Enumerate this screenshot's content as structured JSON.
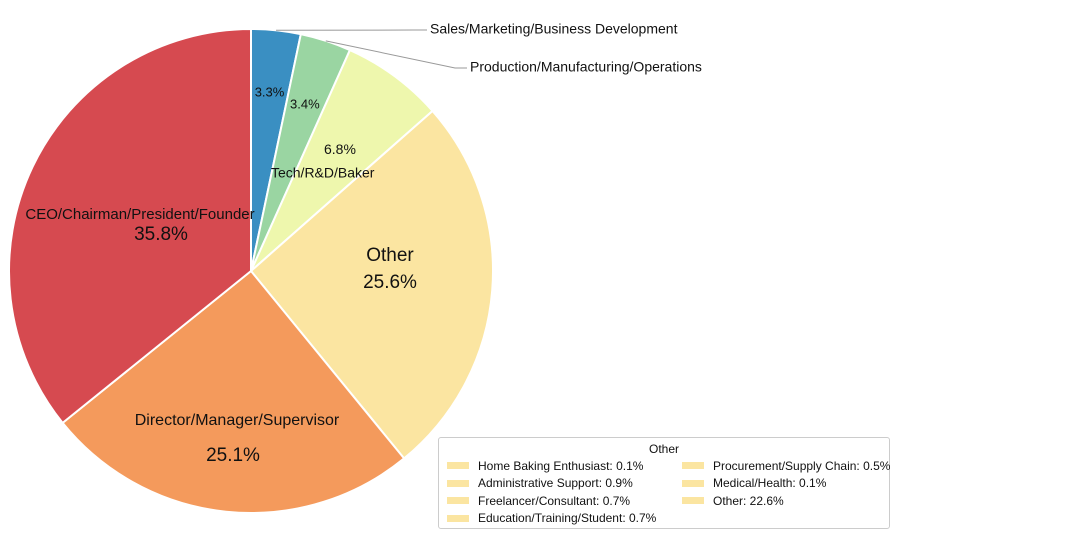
{
  "chart_data": {
    "type": "pie",
    "slices": [
      {
        "label": "Sales/Marketing/Business Development",
        "value": 3.3,
        "pct_label": "3.3%",
        "color": "#3a8fc2",
        "label_position": "outside"
      },
      {
        "label": "Production/Manufacturing/Operations",
        "value": 3.4,
        "pct_label": "3.4%",
        "color": "#9ad5a2",
        "label_position": "outside"
      },
      {
        "label": "Tech/R&D/Baker",
        "value": 6.8,
        "pct_label": "6.8%",
        "color": "#eef7ad",
        "label_position": "inside"
      },
      {
        "label": "Other",
        "value": 25.6,
        "pct_label": "25.6%",
        "color": "#fbe5a1",
        "label_position": "inside"
      },
      {
        "label": "Director/Manager/Supervisor",
        "value": 25.1,
        "pct_label": "25.1%",
        "color": "#f49a5c",
        "label_position": "inside"
      },
      {
        "label": "CEO/Chairman/President/Founder",
        "value": 35.8,
        "pct_label": "35.8%",
        "color": "#d64a50",
        "label_position": "inside"
      }
    ],
    "start_angle": "top, clockwise",
    "legend": {
      "title": "Other",
      "placement": "bottom-right",
      "swatch_color": "#fbe5a1",
      "entries": [
        "Home Baking Enthusiast: 0.1%",
        "Administrative Support: 0.9%",
        "Freelancer/Consultant: 0.7%",
        "Education/Training/Student: 0.7%",
        "Procurement/Supply Chain: 0.5%",
        "Medical/Health: 0.1%",
        "Other: 22.6%"
      ]
    }
  }
}
